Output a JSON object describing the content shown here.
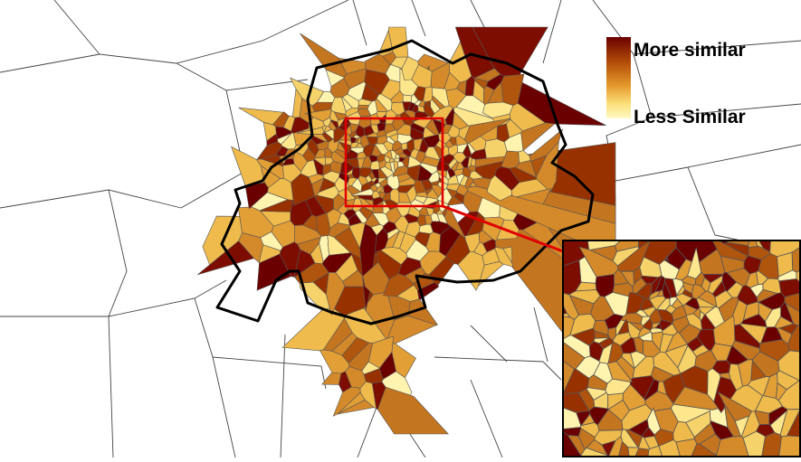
{
  "legend": {
    "high_label": "More similar",
    "low_label": "Less Similar",
    "gradient_colors": [
      "#6b0000",
      "#b04a08",
      "#e59a2c",
      "#fbe07a",
      "#fff9c4"
    ]
  },
  "palette": [
    "#6b0000",
    "#7d0d00",
    "#973200",
    "#b0550d",
    "#c47520",
    "#d48a2a",
    "#e29f36",
    "#efbb4c",
    "#f6d26a",
    "#fde68c",
    "#fff3b0"
  ],
  "line_colors": {
    "cell_border": "#555555",
    "boundary": "#000000",
    "focus_box": "#e00000"
  }
}
